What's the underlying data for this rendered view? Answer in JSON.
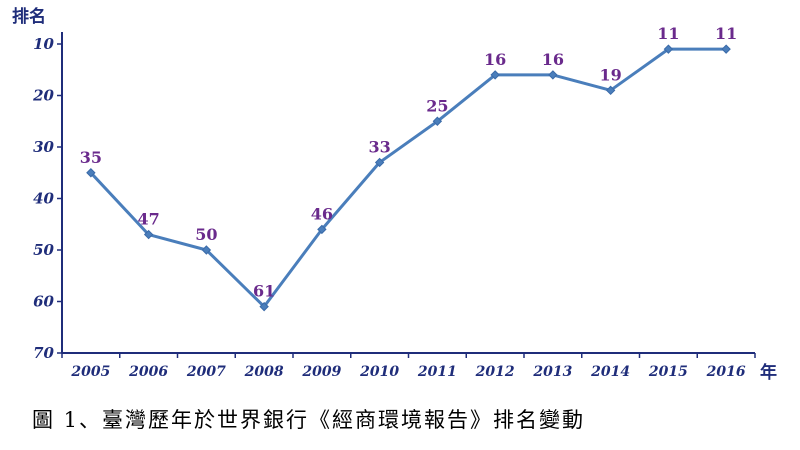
{
  "caption": "圖 1、臺灣歷年於世界銀行《經商環境報告》排名變動",
  "chart_data": {
    "type": "line",
    "ylabel": "排名",
    "xlabel": "年",
    "x": [
      "2005",
      "2006",
      "2007",
      "2008",
      "2009",
      "2010",
      "2011",
      "2012",
      "2013",
      "2014",
      "2015",
      "2016"
    ],
    "series": [
      {
        "values": [
          35,
          47,
          50,
          61,
          46,
          33,
          25,
          16,
          16,
          19,
          11,
          11
        ]
      }
    ],
    "ylim": [
      10,
      70
    ],
    "y_inverted": true,
    "yticks": [
      10,
      20,
      30,
      40,
      50,
      60,
      70
    ],
    "grid": false,
    "colors": {
      "line": "#4a7ebb",
      "labels": "#6a2a8c",
      "axis": "#1f2d7a"
    }
  }
}
